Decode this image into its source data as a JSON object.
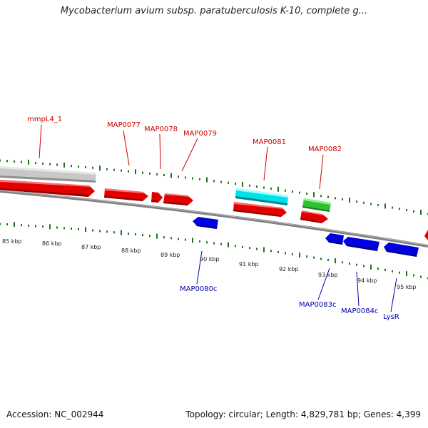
{
  "title": "Mycobacterium avium subsp. paratuberculosis K-10, complete g...",
  "footer": {
    "accession": "Accession: NC_002944",
    "summary": "Topology: circular; Length: 4,829,781 bp; Genes: 4,399"
  },
  "colors": {
    "forward_gene": "#e00000",
    "reverse_gene": "#0000e0",
    "rrna": "#00d8e0",
    "trna": "#30c030",
    "pseudo": "#c0c0c0",
    "tick": "#207020",
    "forward_label": "#cc0000",
    "reverse_label": "#0000aa",
    "backbone": "#808080"
  },
  "kbp_labels": [
    "85 kbp",
    "86 kbp",
    "87 kbp",
    "88 kbp",
    "89 kbp",
    "90 kbp",
    "91 kbp",
    "92 kbp",
    "93 kbp",
    "94 kbp",
    "95 kbp"
  ],
  "forward_genes": [
    "mmpL4_1",
    "MAP0077",
    "MAP0078",
    "MAP0079",
    "MAP0081",
    "MAP0082"
  ],
  "reverse_genes": [
    "MAP0080c",
    "MAP0083c",
    "MAP0084c",
    "LysR"
  ]
}
